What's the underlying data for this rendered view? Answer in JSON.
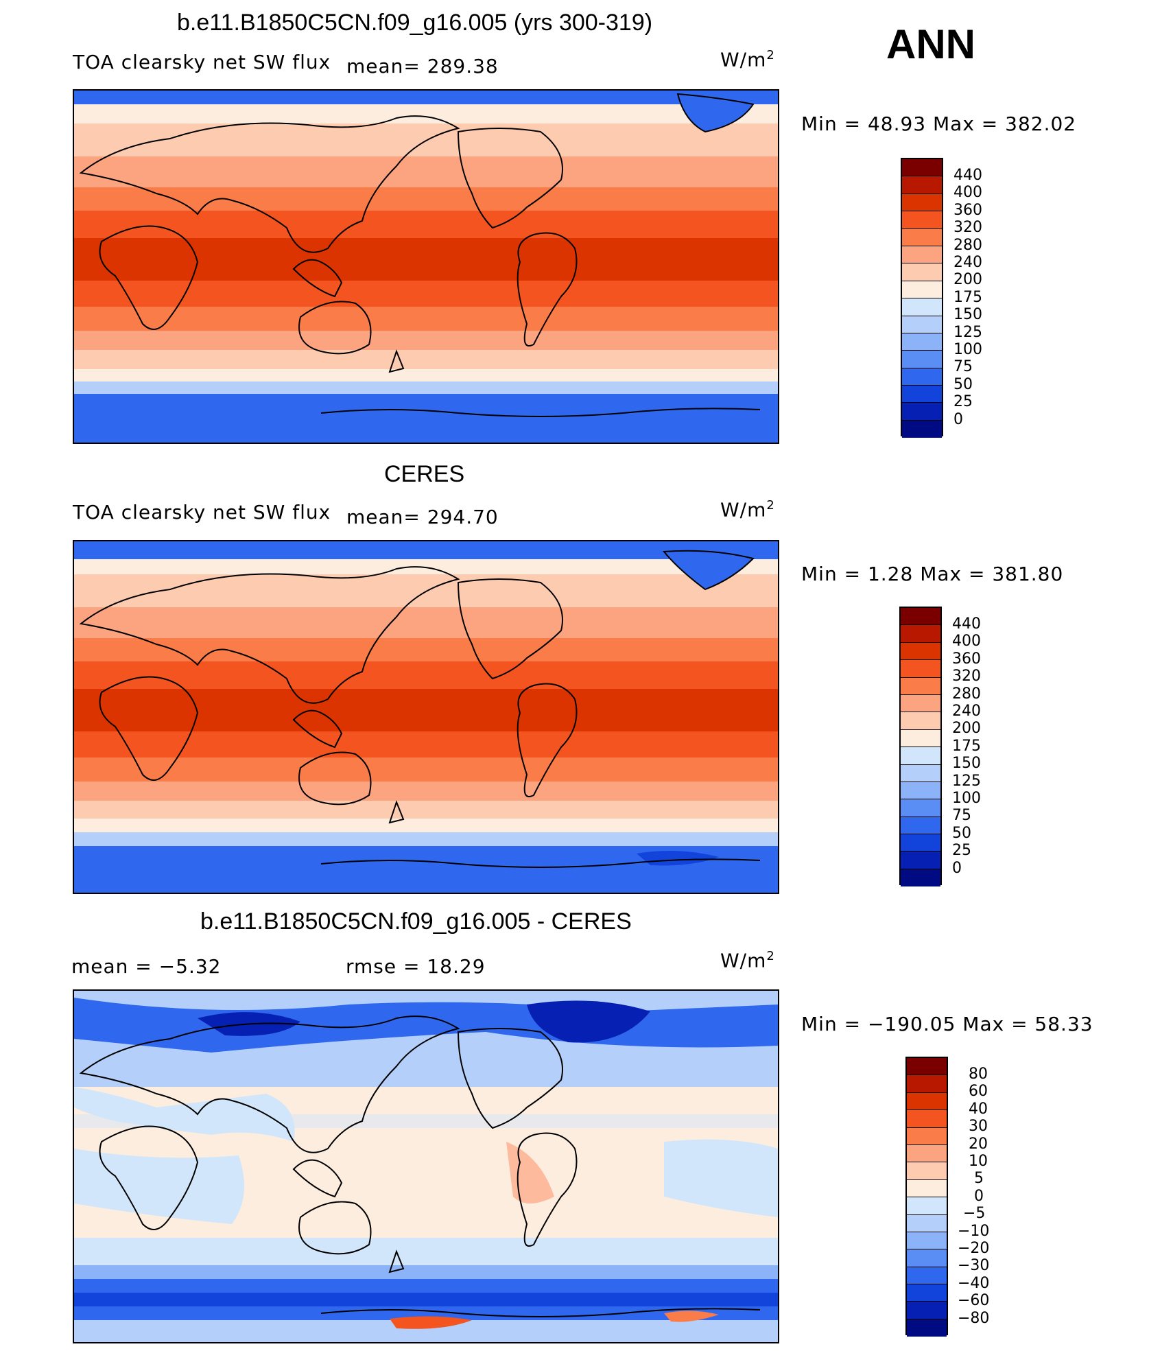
{
  "season": "ANN",
  "panels": [
    {
      "id": "model",
      "title": "b.e11.B1850C5CN.f09_g16.005 (yrs 300-319)",
      "variable": "TOA clearsky net SW flux",
      "stat": "mean= 289.38",
      "unit": "W/m",
      "unit_sup": "2",
      "minmax": "Min =   48.93 Max = 382.02",
      "colorbar_labels": [
        "440",
        "400",
        "360",
        "320",
        "280",
        "240",
        "200",
        "175",
        "150",
        "125",
        "100",
        "75",
        "50",
        "25",
        "0"
      ],
      "colorbar_colors": [
        "#7a0000",
        "#b81800",
        "#dc3400",
        "#f45520",
        "#fa7c48",
        "#fca480",
        "#fdcbb0",
        "#fdeddf",
        "#d2e6fb",
        "#b4d0fa",
        "#8cb2f8",
        "#5a8ef4",
        "#2f68ee",
        "#1244dc",
        "#0620b4",
        "#000a82"
      ]
    },
    {
      "id": "obs",
      "title": "CERES",
      "variable": "TOA clearsky net SW flux",
      "stat": "mean= 294.70",
      "unit": "W/m",
      "unit_sup": "2",
      "minmax": "Min =    1.28 Max = 381.80",
      "colorbar_labels": [
        "440",
        "400",
        "360",
        "320",
        "280",
        "240",
        "200",
        "175",
        "150",
        "125",
        "100",
        "75",
        "50",
        "25",
        "0"
      ],
      "colorbar_colors": [
        "#7a0000",
        "#b81800",
        "#dc3400",
        "#f45520",
        "#fa7c48",
        "#fca480",
        "#fdcbb0",
        "#fdeddf",
        "#d2e6fb",
        "#b4d0fa",
        "#8cb2f8",
        "#5a8ef4",
        "#2f68ee",
        "#1244dc",
        "#0620b4",
        "#000a82"
      ]
    },
    {
      "id": "diff",
      "title": "b.e11.B1850C5CN.f09_g16.005 - CERES",
      "stat_mean": "mean =    −5.32",
      "stat_rmse": "rmse =    18.29",
      "unit": "W/m",
      "unit_sup": "2",
      "minmax": "Min = −190.05 Max =   58.33",
      "colorbar_labels": [
        "80",
        "60",
        "40",
        "30",
        "20",
        "10",
        "5",
        "0",
        "−5",
        "−10",
        "−20",
        "−30",
        "−40",
        "−60",
        "−80"
      ],
      "colorbar_colors": [
        "#7a0000",
        "#b81800",
        "#dc3400",
        "#f45520",
        "#fa7c48",
        "#fca480",
        "#fdcbb0",
        "#fdeddf",
        "#d2e6fb",
        "#b4d0fa",
        "#8cb2f8",
        "#5a8ef4",
        "#2f68ee",
        "#1244dc",
        "#0620b4",
        "#000a82"
      ]
    }
  ]
}
